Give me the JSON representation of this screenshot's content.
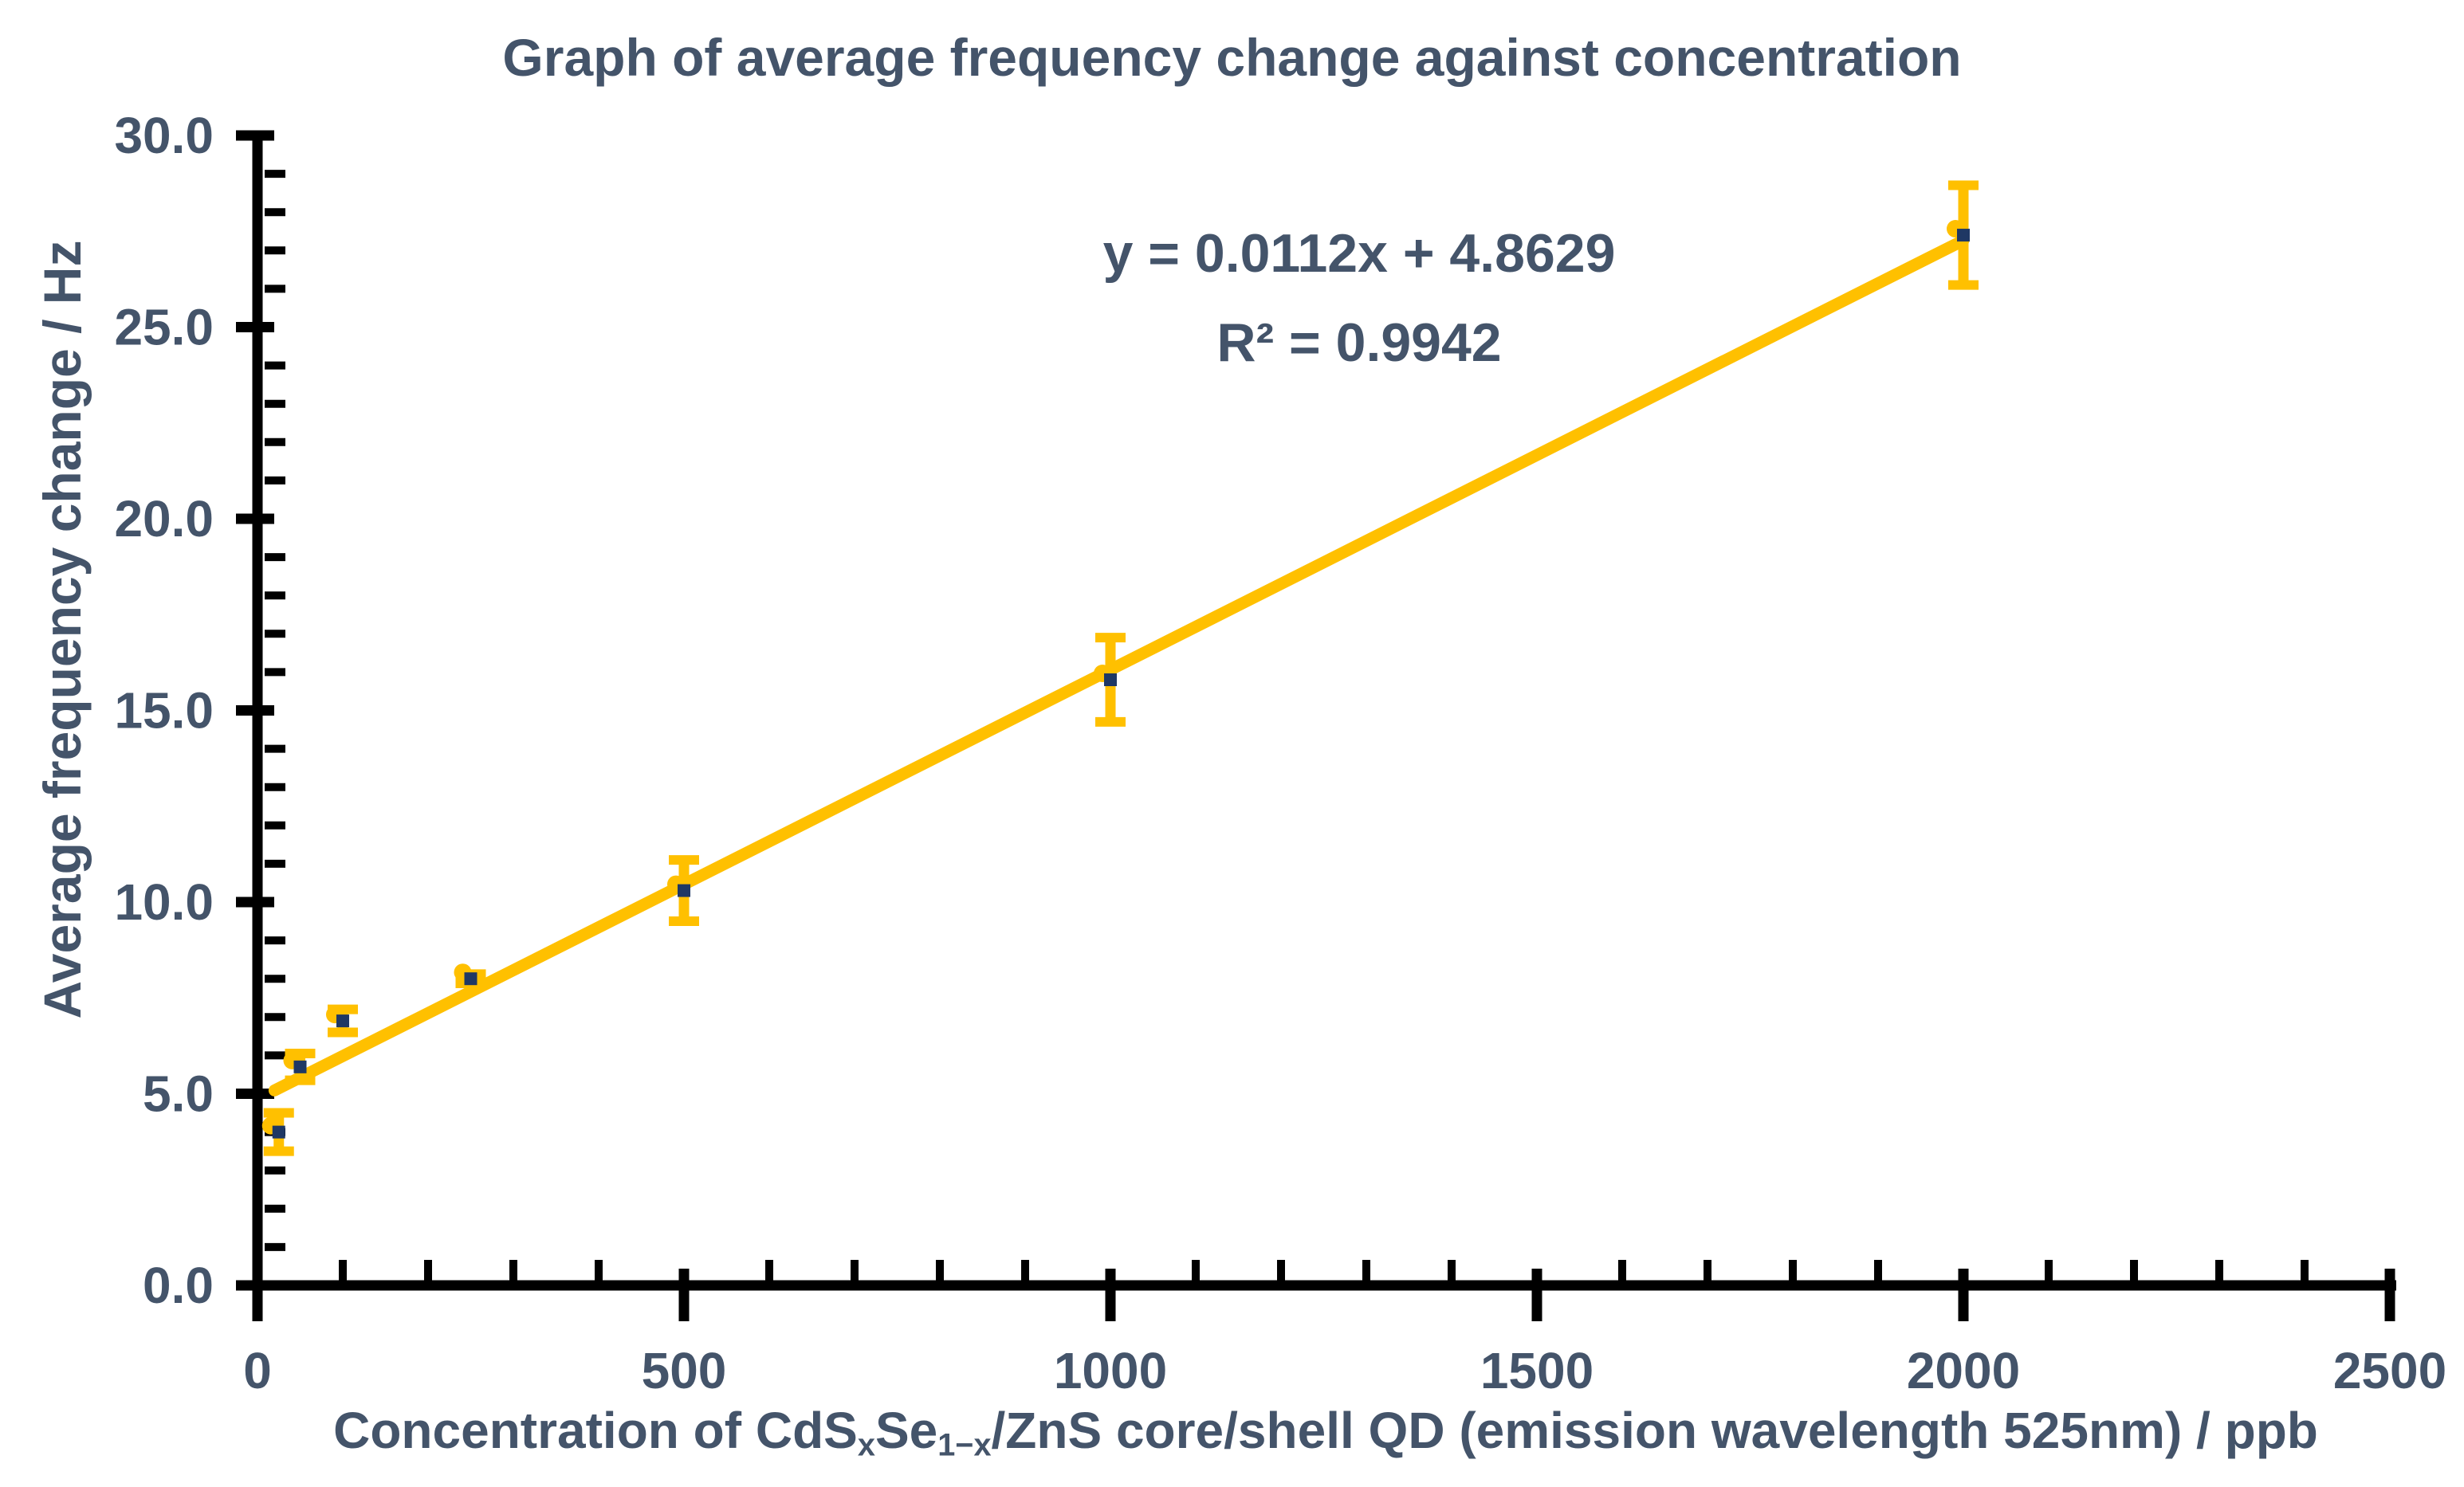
{
  "page": {
    "background": "#FFFFFF"
  },
  "chart_data": {
    "type": "scatter",
    "title": "Graph of average frequency change against concentration",
    "annotation": {
      "equation": "y = 0.0112x + 4.8629",
      "r_squared": "R² = 0.9942"
    },
    "x_axis": {
      "label_plain": "Concentration of CdSxSe1−x/ZnS core/shell QD (emission wavelength 525nm) / ppb",
      "label_parts": [
        {
          "t": "Concentration of CdS"
        },
        {
          "t": "x",
          "sub": true
        },
        {
          "t": "Se"
        },
        {
          "t": "1−x",
          "sub": true
        },
        {
          "t": "/ZnS core/shell QD (emission wavelength 525nm) / ppb"
        }
      ],
      "ticks": [
        0,
        500,
        1000,
        1500,
        2000,
        2500
      ],
      "tick_labels": [
        "0",
        "500",
        "1000",
        "1500",
        "2000",
        "2500"
      ],
      "minor_step": 100,
      "range": [
        0,
        2500
      ]
    },
    "y_axis": {
      "label": "Average frequency change / Hz",
      "ticks": [
        0,
        5,
        10,
        15,
        20,
        25,
        30
      ],
      "tick_labels": [
        "0.0",
        "5.0",
        "10.0",
        "15.0",
        "20.0",
        "25.0",
        "30.0"
      ],
      "minor_step": 1,
      "range": [
        0,
        30
      ]
    },
    "series": [
      {
        "name": "Average frequency change",
        "marker": "square",
        "color": "#1F3864",
        "points": [
          {
            "x": 25,
            "y": 4.0,
            "yerr": 0.5
          },
          {
            "x": 50,
            "y": 5.7,
            "yerr": 0.35
          },
          {
            "x": 100,
            "y": 6.9,
            "yerr": 0.3
          },
          {
            "x": 250,
            "y": 8.0,
            "yerr": 0.12
          },
          {
            "x": 500,
            "y": 10.3,
            "yerr": 0.8
          },
          {
            "x": 1000,
            "y": 15.8,
            "yerr": 1.1
          },
          {
            "x": 2000,
            "y": 27.4,
            "yerr": 1.3
          }
        ]
      }
    ],
    "error_bar_color": "#FFC000",
    "trendline": {
      "slope": 0.0112,
      "intercept": 4.8629,
      "x_start": 20,
      "x_end": 2000,
      "color": "#FFC000"
    },
    "grid": false,
    "legend": false,
    "colors": {
      "accent": "#FFC000",
      "marker": "#1F3864",
      "text": "#44546A",
      "axis": "#000000"
    }
  }
}
